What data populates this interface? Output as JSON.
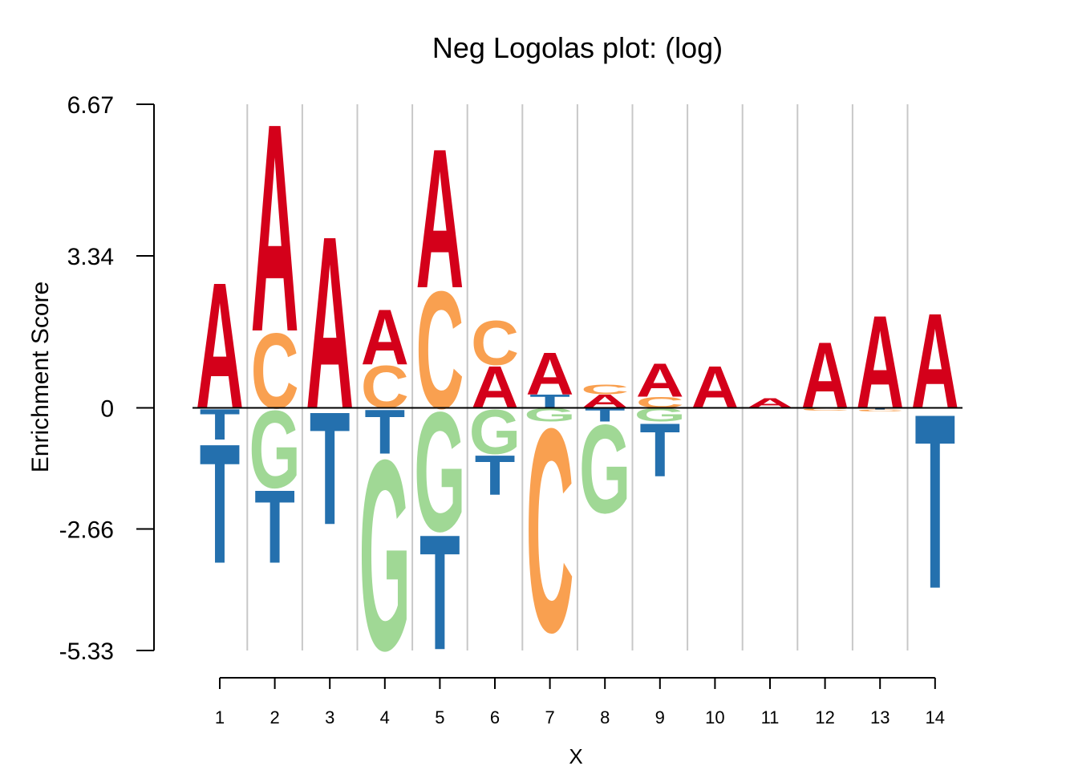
{
  "chart_data": {
    "type": "sequence-logo",
    "title": "Neg Logolas plot: (log)",
    "xlabel": "X",
    "ylabel": "Enrichment Score",
    "ylim": [
      -5.33,
      6.67
    ],
    "yticks": [
      "6.67",
      "3.34",
      "0",
      "-2.66",
      "-5.33"
    ],
    "ytick_values": [
      6.67,
      3.34,
      0,
      -2.66,
      -5.33
    ],
    "x": [
      "1",
      "2",
      "3",
      "4",
      "5",
      "6",
      "7",
      "8",
      "9",
      "10",
      "11",
      "12",
      "13",
      "14"
    ],
    "grid": "vertical",
    "colors": {
      "A": "#d4001a",
      "C": "#f9a050",
      "G": "#a0d895",
      "T": "#2470ae"
    },
    "positions": [
      {
        "pos": 1,
        "up": [
          {
            "base": "A",
            "h": 2.85
          }
        ],
        "down": [
          {
            "base": "T",
            "h": 0.7
          },
          {
            "base": "T",
            "h": 2.7,
            "dummy": false
          }
        ]
      },
      {
        "pos": 2,
        "up": [
          {
            "base": "C",
            "h": 1.7
          },
          {
            "base": "A",
            "h": 4.7
          }
        ],
        "down": [
          {
            "base": "G",
            "h": 1.75
          },
          {
            "base": "T",
            "h": 1.65
          }
        ]
      },
      {
        "pos": 3,
        "up": [
          {
            "base": "A",
            "h": 3.9
          }
        ],
        "down": [
          {
            "base": "T",
            "h": 2.55
          }
        ]
      },
      {
        "pos": 4,
        "up": [
          {
            "base": "C",
            "h": 0.95
          },
          {
            "base": "A",
            "h": 1.25
          }
        ],
        "down": [
          {
            "base": "T",
            "h": 1.0
          },
          {
            "base": "G",
            "h": 4.3
          }
        ]
      },
      {
        "pos": 5,
        "up": [
          {
            "base": "C",
            "h": 2.65
          },
          {
            "base": "A",
            "h": 3.15
          }
        ],
        "down": [
          {
            "base": "G",
            "h": 2.7
          },
          {
            "base": "T",
            "h": 2.6
          }
        ]
      },
      {
        "pos": 6,
        "up": [
          {
            "base": "A",
            "h": 0.95
          },
          {
            "base": "C",
            "h": 1.0
          }
        ],
        "down": [
          {
            "base": "G",
            "h": 1.0
          },
          {
            "base": "T",
            "h": 0.9
          }
        ]
      },
      {
        "pos": 7,
        "up": [
          {
            "base": "T",
            "h": 0.3
          },
          {
            "base": "A",
            "h": 0.95
          }
        ],
        "down": [
          {
            "base": "G",
            "h": 0.3
          },
          {
            "base": "C",
            "h": 4.6
          }
        ]
      },
      {
        "pos": 8,
        "up": [
          {
            "base": "A",
            "h": 0.3
          },
          {
            "base": "C",
            "h": 0.22
          }
        ],
        "down": [
          {
            "base": "T",
            "h": 0.3
          },
          {
            "base": "G",
            "h": 2.0
          }
        ]
      },
      {
        "pos": 9,
        "up": [
          {
            "base": "C",
            "h": 0.25
          },
          {
            "base": "A",
            "h": 0.75
          }
        ],
        "down": [
          {
            "base": "G",
            "h": 0.3
          },
          {
            "base": "T",
            "h": 1.2
          }
        ]
      },
      {
        "pos": 10,
        "up": [
          {
            "base": "A",
            "h": 0.95
          }
        ],
        "down": []
      },
      {
        "pos": 11,
        "up": [
          {
            "base": "A",
            "h": 0.22
          }
        ],
        "down": []
      },
      {
        "pos": 12,
        "up": [
          {
            "base": "A",
            "h": 1.5
          }
        ],
        "down": [
          {
            "base": "C",
            "h": 0.06
          }
        ]
      },
      {
        "pos": 13,
        "up": [
          {
            "base": "A",
            "h": 2.1
          }
        ],
        "down": [
          {
            "base": "T",
            "h": 0.04
          },
          {
            "base": "C",
            "h": 0.04
          }
        ]
      },
      {
        "pos": 14,
        "up": [
          {
            "base": "A",
            "h": 2.15
          }
        ],
        "down": [
          {
            "base": "T",
            "h": 3.95
          }
        ]
      }
    ]
  }
}
